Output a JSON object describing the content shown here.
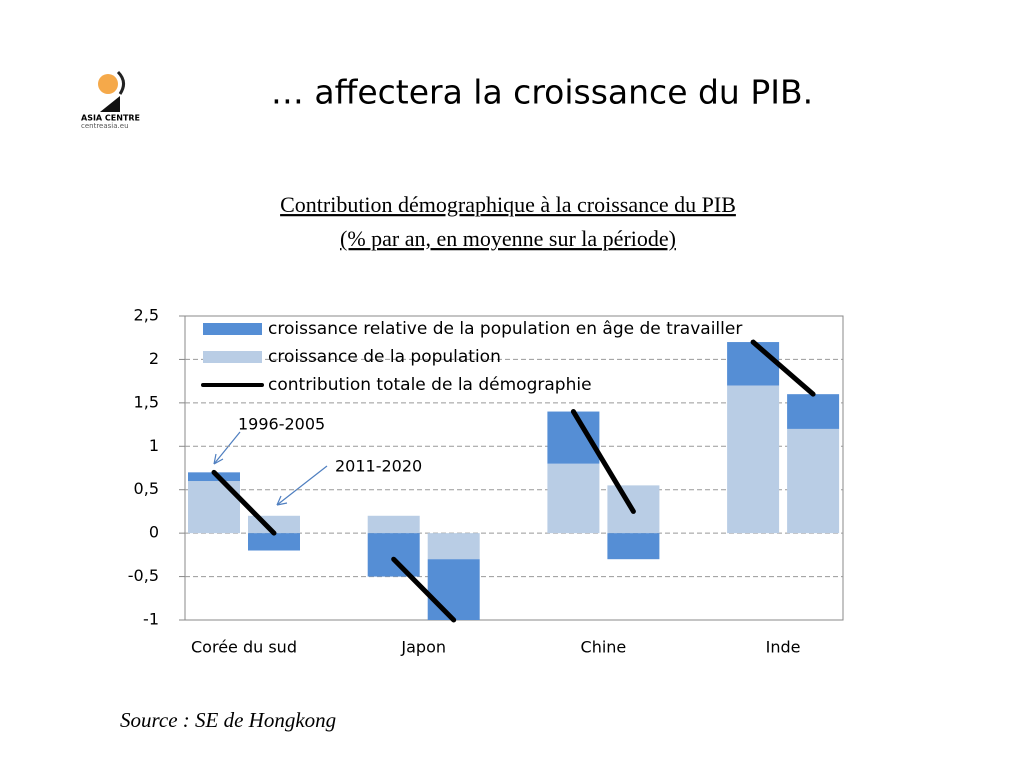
{
  "logo": {
    "name": "ASIA CENTRE",
    "url": "centreasia.eu"
  },
  "slide_title": "… affectera la croissance du PIB.",
  "chart_data": {
    "type": "bar",
    "title": "Contribution démographique à la croissance du PIB",
    "subtitle": "(% par an, en moyenne sur la période)",
    "categories": [
      "Corée du sud",
      "Japon",
      "Chine",
      "Inde"
    ],
    "series": [
      {
        "name": "croissance relative de la population en âge de travailler",
        "color": "#558ed5",
        "values": [
          [
            0.1,
            -0.2
          ],
          [
            -0.5,
            -0.7
          ],
          [
            0.6,
            -0.3
          ],
          [
            0.5,
            0.4
          ]
        ]
      },
      {
        "name": "croissance de la population",
        "color": "#b9cde5",
        "values": [
          [
            0.6,
            0.2
          ],
          [
            0.2,
            -0.3
          ],
          [
            0.8,
            0.55
          ],
          [
            1.7,
            1.2
          ]
        ]
      },
      {
        "name": "contribution totale de la démographie",
        "color": "#000000",
        "type": "line",
        "values": [
          [
            0.7,
            0
          ],
          [
            -0.3,
            -1
          ],
          [
            1.4,
            0.25
          ],
          [
            2.2,
            1.6
          ]
        ]
      }
    ],
    "annotations": [
      "1996-2005",
      "2011-2020"
    ],
    "ylim": [
      -1,
      2.5
    ],
    "yticks": [
      {
        "value": 2.5,
        "label": "2,5"
      },
      2,
      {
        "value": 1.5,
        "label": "1,5"
      },
      1,
      {
        "value": 0.5,
        "label": "0,5"
      },
      0,
      {
        "value": -0.5,
        "label": "-0,5"
      },
      -1
    ],
    "grid": true,
    "legend": "top-left"
  },
  "source": "Source : SE de Hongkong"
}
